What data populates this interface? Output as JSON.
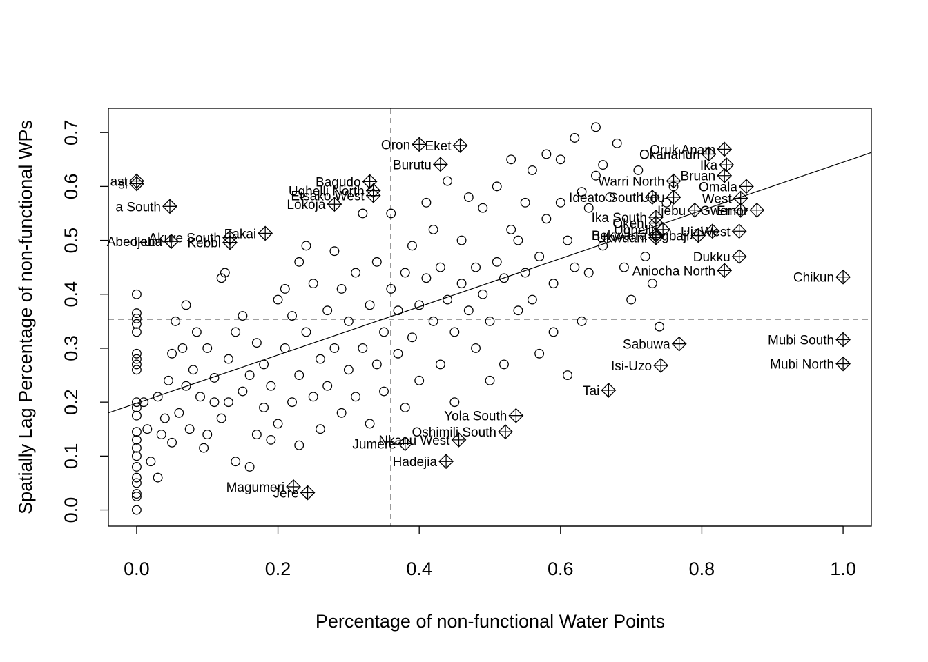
{
  "chart_data": {
    "type": "scatter",
    "title": "",
    "xlabel": "Percentage of non-functional Water Points",
    "ylabel": "Spatially Lag Percentage of non-functional WPs",
    "xlim": [
      -0.04,
      1.04
    ],
    "ylim": [
      -0.03,
      0.745
    ],
    "x_ticks": [
      "0.0",
      "0.2",
      "0.4",
      "0.6",
      "0.8",
      "1.0"
    ],
    "y_ticks": [
      "0.0",
      "0.1",
      "0.2",
      "0.3",
      "0.4",
      "0.5",
      "0.6",
      "0.7"
    ],
    "grid": false,
    "legend": "none",
    "reference_lines": {
      "mean_x": 0.36,
      "mean_y": 0.354
    },
    "regression_line": {
      "intercept": 0.198,
      "slope": 0.447
    },
    "influential_points": [
      {
        "label": "Oron",
        "x": 0.4,
        "y": 0.678
      },
      {
        "label": "Eket",
        "x": 0.458,
        "y": 0.676
      },
      {
        "label": "Burutu",
        "x": 0.43,
        "y": 0.641
      },
      {
        "label": "Bagudo",
        "x": 0.33,
        "y": 0.609
      },
      {
        "label": "Ughelli North",
        "x": 0.335,
        "y": 0.592
      },
      {
        "label": "Etsako West",
        "x": 0.335,
        "y": 0.583
      },
      {
        "label": "Lokoja",
        "x": 0.28,
        "y": 0.567
      },
      {
        "label": "Fakai",
        "x": 0.182,
        "y": 0.513
      },
      {
        "label": "Akure South",
        "x": 0.132,
        "y": 0.505
      },
      {
        "label": "Kebbi",
        "x": 0.132,
        "y": 0.496
      },
      {
        "label": "Ijebu",
        "x": 0.049,
        "y": 0.498
      },
      {
        "label": "Abeokuta",
        "x": 0.049,
        "y": 0.498
      },
      {
        "label": "a South",
        "x": 0.047,
        "y": 0.563
      },
      {
        "label": "ast",
        "x": 0.0,
        "y": 0.61
      },
      {
        "label": "sl",
        "x": 0.0,
        "y": 0.605
      },
      {
        "label": "Oruk Anam",
        "x": 0.832,
        "y": 0.669
      },
      {
        "label": "Okanahun",
        "x": 0.81,
        "y": 0.66
      },
      {
        "label": "Ika",
        "x": 0.835,
        "y": 0.64
      },
      {
        "label": "Bruan",
        "x": 0.832,
        "y": 0.62
      },
      {
        "label": "Omala",
        "x": 0.863,
        "y": 0.6
      },
      {
        "label": "Warri North",
        "x": 0.76,
        "y": 0.61
      },
      {
        "label": "Ideato South",
        "x": 0.73,
        "y": 0.58
      },
      {
        "label": "Udu",
        "x": 0.76,
        "y": 0.58
      },
      {
        "label": "West",
        "x": 0.855,
        "y": 0.578
      },
      {
        "label": "Ijebu",
        "x": 0.79,
        "y": 0.556
      },
      {
        "label": "Gwer",
        "x": 0.855,
        "y": 0.556
      },
      {
        "label": "Emor",
        "x": 0.878,
        "y": 0.556
      },
      {
        "label": "Ika South",
        "x": 0.735,
        "y": 0.543
      },
      {
        "label": "Okehi",
        "x": 0.735,
        "y": 0.532
      },
      {
        "label": "Ughelli",
        "x": 0.745,
        "y": 0.52
      },
      {
        "label": "West",
        "x": 0.853,
        "y": 0.517
      },
      {
        "label": "Bekwarra",
        "x": 0.735,
        "y": 0.51
      },
      {
        "label": "Ukwuani",
        "x": 0.735,
        "y": 0.505
      },
      {
        "label": "Ogbaji",
        "x": 0.795,
        "y": 0.509
      },
      {
        "label": "Ujal",
        "x": 0.815,
        "y": 0.517
      },
      {
        "label": "Dukku",
        "x": 0.853,
        "y": 0.47
      },
      {
        "label": "Aniocha North",
        "x": 0.832,
        "y": 0.444
      },
      {
        "label": "Chikun",
        "x": 1.0,
        "y": 0.432
      },
      {
        "label": "Mubi South",
        "x": 1.0,
        "y": 0.316
      },
      {
        "label": "Mubi North",
        "x": 1.0,
        "y": 0.271
      },
      {
        "label": "Sabuwa",
        "x": 0.768,
        "y": 0.308
      },
      {
        "label": "Isi-Uzo",
        "x": 0.742,
        "y": 0.268
      },
      {
        "label": "Tai",
        "x": 0.668,
        "y": 0.222
      },
      {
        "label": "Yola South",
        "x": 0.537,
        "y": 0.175
      },
      {
        "label": "Oshimili South",
        "x": 0.522,
        "y": 0.145
      },
      {
        "label": "Nkanu West",
        "x": 0.456,
        "y": 0.13
      },
      {
        "label": "Jumere",
        "x": 0.38,
        "y": 0.123
      },
      {
        "label": "Hadejia",
        "x": 0.438,
        "y": 0.09
      },
      {
        "label": "Magumeri",
        "x": 0.222,
        "y": 0.043
      },
      {
        "label": "Jere",
        "x": 0.242,
        "y": 0.032
      }
    ],
    "regular_points": [
      [
        0.0,
        0.0
      ],
      [
        0.0,
        0.025
      ],
      [
        0.0,
        0.03
      ],
      [
        0.0,
        0.05
      ],
      [
        0.0,
        0.06
      ],
      [
        0.0,
        0.08
      ],
      [
        0.0,
        0.1
      ],
      [
        0.0,
        0.115
      ],
      [
        0.0,
        0.13
      ],
      [
        0.0,
        0.145
      ],
      [
        0.0,
        0.175
      ],
      [
        0.0,
        0.19
      ],
      [
        0.0,
        0.2
      ],
      [
        0.0,
        0.26
      ],
      [
        0.0,
        0.27
      ],
      [
        0.0,
        0.28
      ],
      [
        0.0,
        0.29
      ],
      [
        0.0,
        0.33
      ],
      [
        0.0,
        0.345
      ],
      [
        0.0,
        0.355
      ],
      [
        0.0,
        0.365
      ],
      [
        0.0,
        0.4
      ],
      [
        0.01,
        0.2
      ],
      [
        0.015,
        0.15
      ],
      [
        0.02,
        0.09
      ],
      [
        0.03,
        0.06
      ],
      [
        0.03,
        0.21
      ],
      [
        0.035,
        0.14
      ],
      [
        0.04,
        0.17
      ],
      [
        0.045,
        0.24
      ],
      [
        0.05,
        0.125
      ],
      [
        0.05,
        0.29
      ],
      [
        0.055,
        0.35
      ],
      [
        0.06,
        0.18
      ],
      [
        0.065,
        0.3
      ],
      [
        0.07,
        0.23
      ],
      [
        0.07,
        0.38
      ],
      [
        0.075,
        0.15
      ],
      [
        0.08,
        0.26
      ],
      [
        0.085,
        0.33
      ],
      [
        0.09,
        0.21
      ],
      [
        0.095,
        0.115
      ],
      [
        0.1,
        0.14
      ],
      [
        0.1,
        0.3
      ],
      [
        0.11,
        0.2
      ],
      [
        0.11,
        0.245
      ],
      [
        0.12,
        0.17
      ],
      [
        0.12,
        0.43
      ],
      [
        0.125,
        0.44
      ],
      [
        0.13,
        0.2
      ],
      [
        0.13,
        0.28
      ],
      [
        0.14,
        0.09
      ],
      [
        0.14,
        0.33
      ],
      [
        0.15,
        0.22
      ],
      [
        0.15,
        0.36
      ],
      [
        0.16,
        0.08
      ],
      [
        0.16,
        0.25
      ],
      [
        0.17,
        0.14
      ],
      [
        0.17,
        0.31
      ],
      [
        0.18,
        0.19
      ],
      [
        0.18,
        0.27
      ],
      [
        0.19,
        0.13
      ],
      [
        0.19,
        0.23
      ],
      [
        0.2,
        0.39
      ],
      [
        0.2,
        0.16
      ],
      [
        0.21,
        0.3
      ],
      [
        0.21,
        0.41
      ],
      [
        0.22,
        0.2
      ],
      [
        0.22,
        0.36
      ],
      [
        0.23,
        0.12
      ],
      [
        0.23,
        0.25
      ],
      [
        0.23,
        0.46
      ],
      [
        0.24,
        0.33
      ],
      [
        0.24,
        0.49
      ],
      [
        0.25,
        0.21
      ],
      [
        0.25,
        0.42
      ],
      [
        0.26,
        0.28
      ],
      [
        0.26,
        0.15
      ],
      [
        0.27,
        0.37
      ],
      [
        0.27,
        0.23
      ],
      [
        0.28,
        0.3
      ],
      [
        0.28,
        0.48
      ],
      [
        0.29,
        0.18
      ],
      [
        0.29,
        0.41
      ],
      [
        0.3,
        0.26
      ],
      [
        0.3,
        0.35
      ],
      [
        0.31,
        0.21
      ],
      [
        0.31,
        0.44
      ],
      [
        0.32,
        0.3
      ],
      [
        0.32,
        0.55
      ],
      [
        0.33,
        0.16
      ],
      [
        0.33,
        0.38
      ],
      [
        0.34,
        0.27
      ],
      [
        0.34,
        0.46
      ],
      [
        0.35,
        0.22
      ],
      [
        0.35,
        0.33
      ],
      [
        0.36,
        0.41
      ],
      [
        0.36,
        0.55
      ],
      [
        0.37,
        0.29
      ],
      [
        0.37,
        0.37
      ],
      [
        0.38,
        0.19
      ],
      [
        0.38,
        0.44
      ],
      [
        0.39,
        0.32
      ],
      [
        0.39,
        0.49
      ],
      [
        0.4,
        0.24
      ],
      [
        0.4,
        0.38
      ],
      [
        0.41,
        0.43
      ],
      [
        0.41,
        0.57
      ],
      [
        0.42,
        0.35
      ],
      [
        0.42,
        0.52
      ],
      [
        0.43,
        0.27
      ],
      [
        0.43,
        0.45
      ],
      [
        0.44,
        0.39
      ],
      [
        0.44,
        0.61
      ],
      [
        0.45,
        0.2
      ],
      [
        0.45,
        0.33
      ],
      [
        0.46,
        0.42
      ],
      [
        0.46,
        0.5
      ],
      [
        0.47,
        0.37
      ],
      [
        0.47,
        0.58
      ],
      [
        0.48,
        0.3
      ],
      [
        0.48,
        0.45
      ],
      [
        0.49,
        0.4
      ],
      [
        0.49,
        0.56
      ],
      [
        0.5,
        0.24
      ],
      [
        0.5,
        0.35
      ],
      [
        0.51,
        0.46
      ],
      [
        0.51,
        0.6
      ],
      [
        0.52,
        0.27
      ],
      [
        0.52,
        0.43
      ],
      [
        0.53,
        0.52
      ],
      [
        0.53,
        0.65
      ],
      [
        0.54,
        0.37
      ],
      [
        0.54,
        0.5
      ],
      [
        0.55,
        0.44
      ],
      [
        0.55,
        0.57
      ],
      [
        0.56,
        0.39
      ],
      [
        0.56,
        0.63
      ],
      [
        0.57,
        0.29
      ],
      [
        0.57,
        0.47
      ],
      [
        0.58,
        0.54
      ],
      [
        0.58,
        0.66
      ],
      [
        0.59,
        0.33
      ],
      [
        0.59,
        0.42
      ],
      [
        0.6,
        0.57
      ],
      [
        0.6,
        0.65
      ],
      [
        0.61,
        0.25
      ],
      [
        0.61,
        0.5
      ],
      [
        0.62,
        0.45
      ],
      [
        0.62,
        0.69
      ],
      [
        0.63,
        0.35
      ],
      [
        0.63,
        0.59
      ],
      [
        0.64,
        0.44
      ],
      [
        0.64,
        0.56
      ],
      [
        0.65,
        0.71
      ],
      [
        0.65,
        0.62
      ],
      [
        0.66,
        0.49
      ],
      [
        0.66,
        0.64
      ],
      [
        0.67,
        0.58
      ],
      [
        0.68,
        0.68
      ],
      [
        0.69,
        0.45
      ],
      [
        0.7,
        0.39
      ],
      [
        0.71,
        0.63
      ],
      [
        0.72,
        0.47
      ],
      [
        0.73,
        0.42
      ],
      [
        0.74,
        0.34
      ],
      [
        0.75,
        0.57
      ],
      [
        0.76,
        0.6
      ]
    ]
  }
}
